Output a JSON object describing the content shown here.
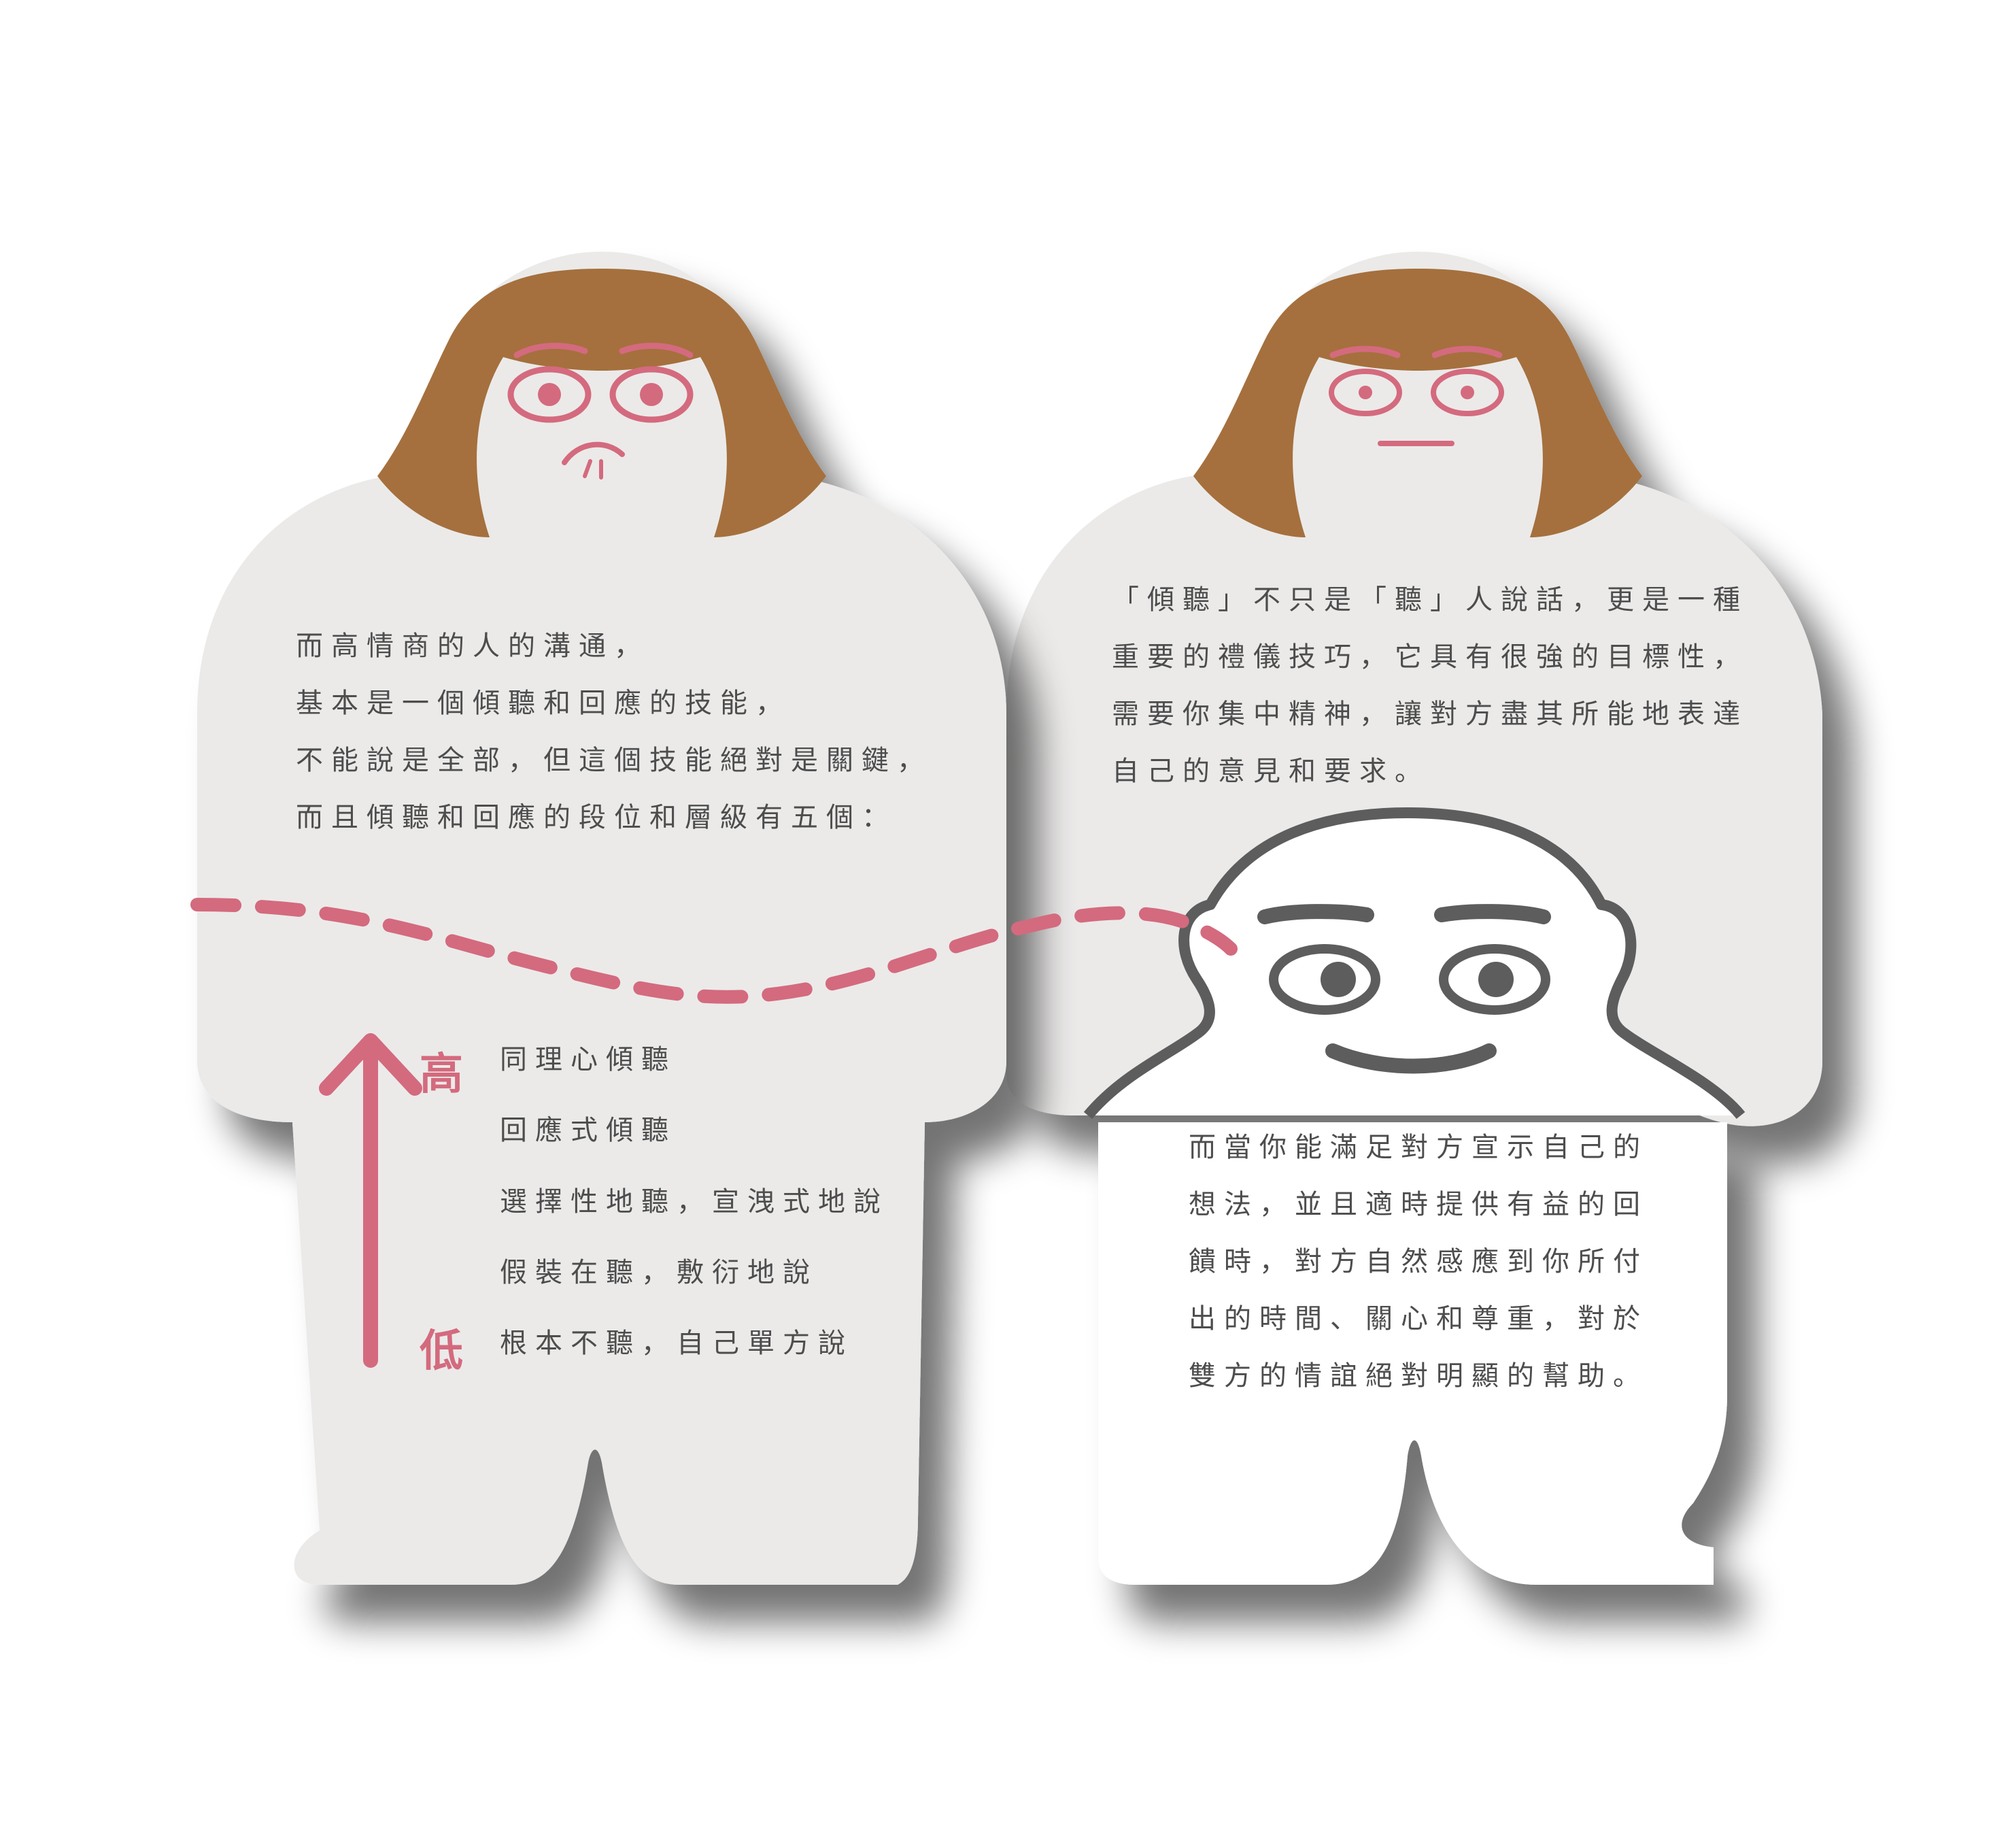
{
  "colors": {
    "page_bg": "#ffffff",
    "gray_body": "#ebeae9",
    "white_body": "#ffffff",
    "hair": "#a56f3e",
    "accent_pink": "#d46a7e",
    "outline_dark": "#5d5d5d",
    "text": "#4d4d4d"
  },
  "left_character": {
    "expression": "worried",
    "paragraph": [
      "而高情商的人的溝通，",
      "基本是一個傾聽和回應的技能，",
      "不能說是全部，但這個技能絕對是關鍵，",
      "而且傾聽和回應的段位和層級有五個："
    ],
    "scale": {
      "high_label": "高",
      "low_label": "低",
      "arrow_icon": "arrow-up-icon",
      "levels": [
        "同理心傾聽",
        "回應式傾聽",
        "選擇性地聽，宣洩式地說",
        "假裝在聽，敷衍地說",
        "根本不聽，自己單方說"
      ]
    }
  },
  "right_character": {
    "expression": "neutral",
    "paragraph": [
      "「傾聽」不只是「聽」人說話，更是一種",
      "重要的禮儀技巧，它具有很強的目標性，",
      "需要你集中精神，讓對方盡其所能地表達",
      "自己的意見和要求。"
    ]
  },
  "white_character": {
    "expression": "smiling",
    "paragraph": [
      "而當你能滿足對方宣示自己的",
      "想法，並且適時提供有益的回",
      "饋時，對方自然感應到你所付",
      "出的時間、關心和尊重，對於",
      "雙方的情誼絕對明顯的幫助。"
    ]
  }
}
